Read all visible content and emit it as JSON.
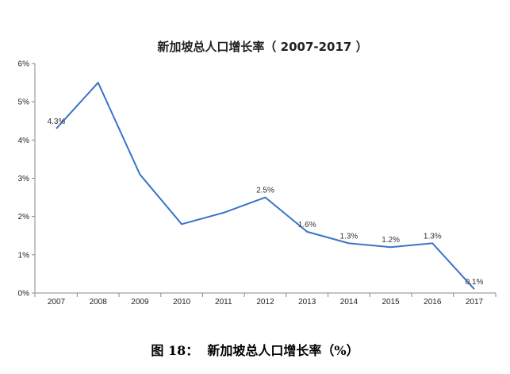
{
  "chart_data": {
    "type": "line",
    "title": "新加坡总人口增长率（ 2007-2017 ）",
    "x": [
      "2007",
      "2008",
      "2009",
      "2010",
      "2011",
      "2012",
      "2013",
      "2014",
      "2015",
      "2016",
      "2017"
    ],
    "series": [
      {
        "values": [
          4.3,
          5.5,
          3.1,
          1.8,
          2.1,
          2.5,
          1.6,
          1.3,
          1.2,
          1.3,
          0.1
        ],
        "color": "#3a74c9"
      }
    ],
    "data_labels": [
      {
        "x": "2007",
        "text": "4.3%"
      },
      {
        "x": "2012",
        "text": "2.5%"
      },
      {
        "x": "2013",
        "text": "1.6%"
      },
      {
        "x": "2014",
        "text": "1.3%"
      },
      {
        "x": "2015",
        "text": "1.2%"
      },
      {
        "x": "2016",
        "text": "1.3%"
      },
      {
        "x": "2017",
        "text": "0.1%"
      }
    ],
    "y_ticks": [
      "0%",
      "1%",
      "2%",
      "3%",
      "4%",
      "5%",
      "6%"
    ],
    "ylim": [
      0,
      6
    ],
    "grid": false,
    "legend": "none"
  },
  "caption": "图 18：  新加坡总人口增长率（%）"
}
